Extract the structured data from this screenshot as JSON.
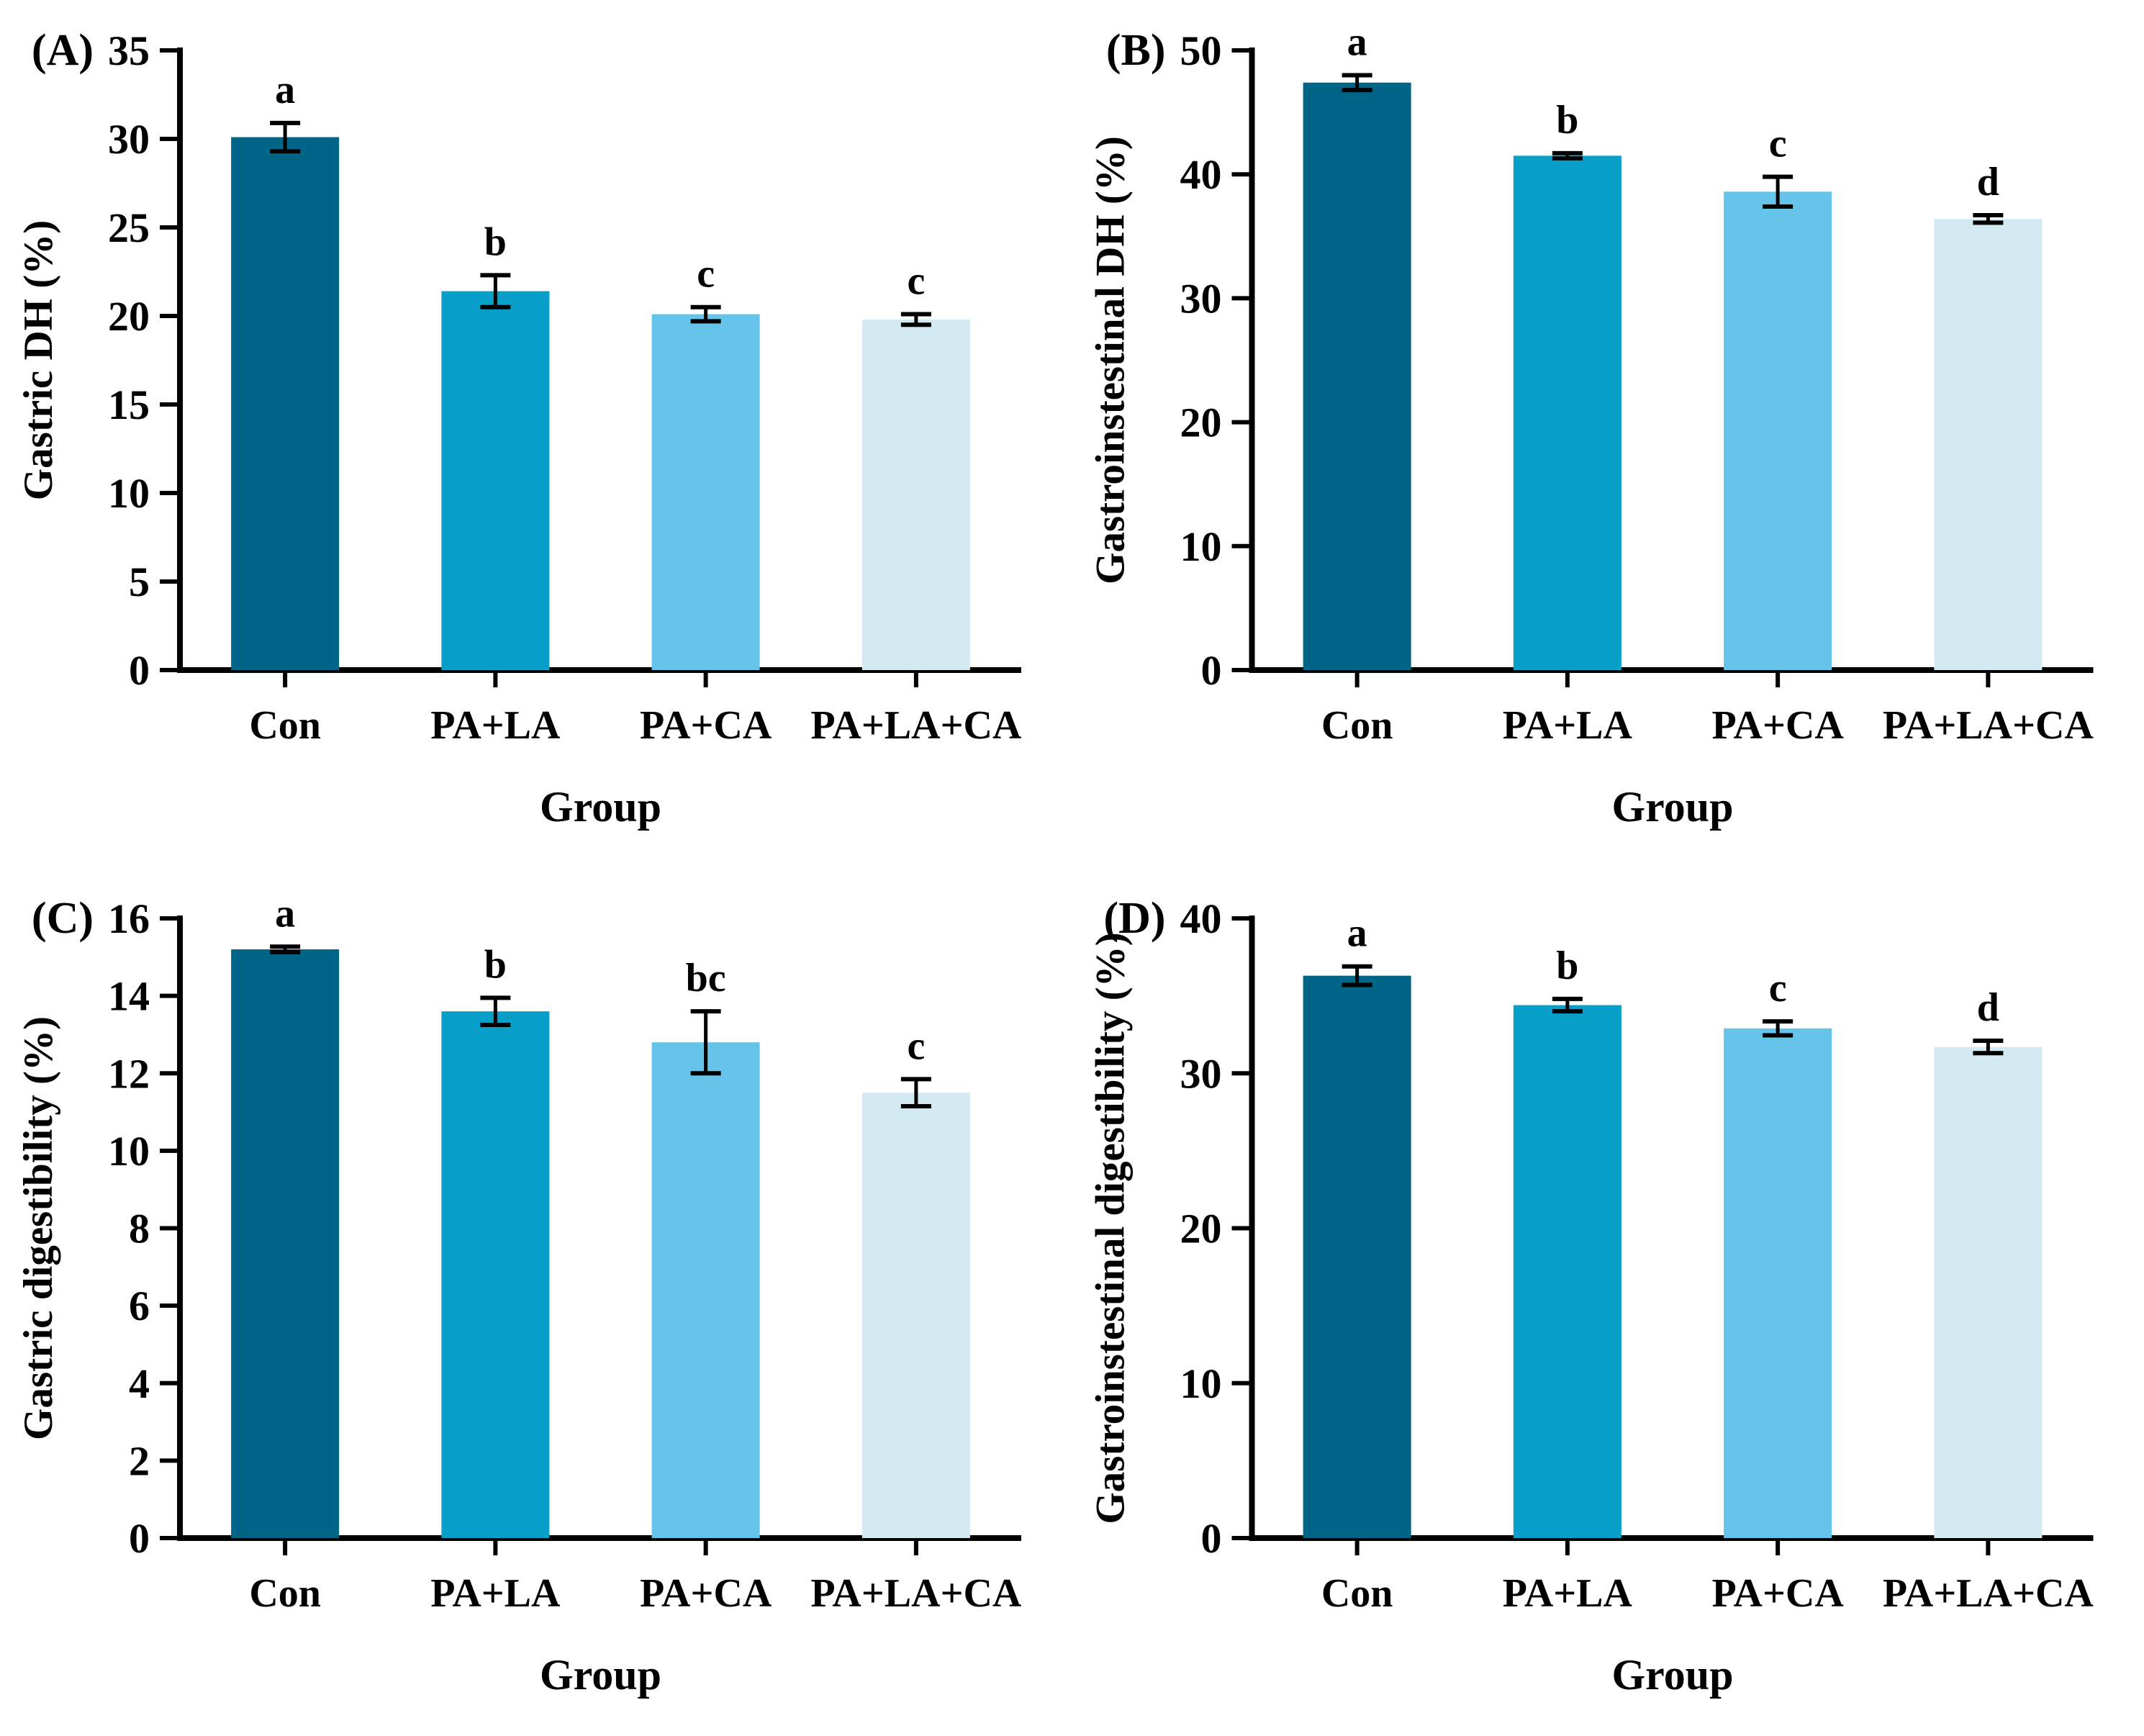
{
  "figure": {
    "background": "#ffffff",
    "text_color": "#000000",
    "error_bar_color": "#000000",
    "bar_colors": [
      "#006587",
      "#089fc8",
      "#66c3e9",
      "#d4eaf3"
    ],
    "categories": [
      "Con",
      "PA+LA",
      "PA+CA",
      "PA+LA+CA"
    ],
    "x_axis_label": "Group"
  },
  "chart_data": [
    {
      "panel": "A",
      "tag": "(A)",
      "type": "bar",
      "title": "",
      "xlabel": "Group",
      "ylabel": "Gastric DH (%)",
      "categories": [
        "Con",
        "PA+LA",
        "PA+CA",
        "PA+LA+CA"
      ],
      "values": [
        30.1,
        21.4,
        20.1,
        19.8
      ],
      "errors": [
        0.8,
        0.9,
        0.4,
        0.3
      ],
      "sig_letters": [
        "a",
        "b",
        "c",
        "c"
      ],
      "ylim": [
        0,
        35
      ],
      "ytick_step": 5,
      "grid": false,
      "legend": null
    },
    {
      "panel": "B",
      "tag": "(B)",
      "type": "bar",
      "title": "",
      "xlabel": "Group",
      "ylabel": "Gastroinstestinal DH (%)",
      "categories": [
        "Con",
        "PA+LA",
        "PA+CA",
        "PA+LA+CA"
      ],
      "values": [
        47.4,
        41.5,
        38.6,
        36.4
      ],
      "errors": [
        0.6,
        0.2,
        1.2,
        0.3
      ],
      "sig_letters": [
        "a",
        "b",
        "c",
        "d"
      ],
      "ylim": [
        0,
        50
      ],
      "ytick_step": 10,
      "grid": false,
      "legend": null
    },
    {
      "panel": "C",
      "tag": "(C)",
      "type": "bar",
      "title": "",
      "xlabel": "Group",
      "ylabel": "Gastric digestibility (%)",
      "categories": [
        "Con",
        "PA+LA",
        "PA+CA",
        "PA+LA+CA"
      ],
      "values": [
        15.2,
        13.6,
        12.8,
        11.5
      ],
      "errors": [
        0.07,
        0.35,
        0.8,
        0.35
      ],
      "sig_letters": [
        "a",
        "b",
        "bc",
        "c"
      ],
      "ylim": [
        0,
        16
      ],
      "ytick_step": 2,
      "grid": false,
      "legend": null
    },
    {
      "panel": "D",
      "tag": "(D)",
      "type": "bar",
      "title": "",
      "xlabel": "Group",
      "ylabel": "Gastroinstestinal digestibility (%)",
      "categories": [
        "Con",
        "PA+LA",
        "PA+CA",
        "PA+LA+CA"
      ],
      "values": [
        36.3,
        34.4,
        32.9,
        31.7
      ],
      "errors": [
        0.6,
        0.4,
        0.45,
        0.4
      ],
      "sig_letters": [
        "a",
        "b",
        "c",
        "d"
      ],
      "ylim": [
        0,
        40
      ],
      "ytick_step": 10,
      "grid": false,
      "legend": null
    }
  ]
}
